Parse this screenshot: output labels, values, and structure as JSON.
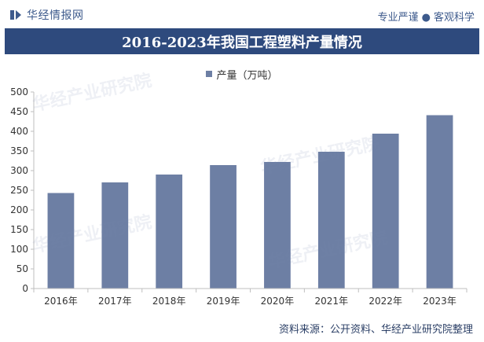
{
  "header": {
    "logo_text": "华经情报网",
    "slogan_left": "专业严谨",
    "slogan_sep": "●",
    "slogan_right": "客观科学"
  },
  "watermark_text": "华经产业研究院",
  "footer": {
    "source": "资料来源：公开资料、华经产业研究院整理"
  },
  "colors": {
    "bar": "#6d7fa4",
    "title_bg": "#2e4a7d",
    "brand": "#3d5a8c"
  },
  "chart_data": {
    "type": "bar",
    "title": "2016-2023年我国工程塑料产量情况",
    "categories": [
      "2016年",
      "2017年",
      "2018年",
      "2019年",
      "2020年",
      "2021年",
      "2022年",
      "2023年"
    ],
    "series": [
      {
        "name": "产量（万吨）",
        "values": [
          243,
          270,
          290,
          314,
          322,
          348,
          394,
          441
        ]
      }
    ],
    "ylim": [
      0,
      500
    ],
    "yticks": [
      0,
      50,
      100,
      150,
      200,
      250,
      300,
      350,
      400,
      450,
      500
    ],
    "xlabel": "",
    "ylabel": "",
    "grid": false,
    "legend_position": "top-center"
  }
}
